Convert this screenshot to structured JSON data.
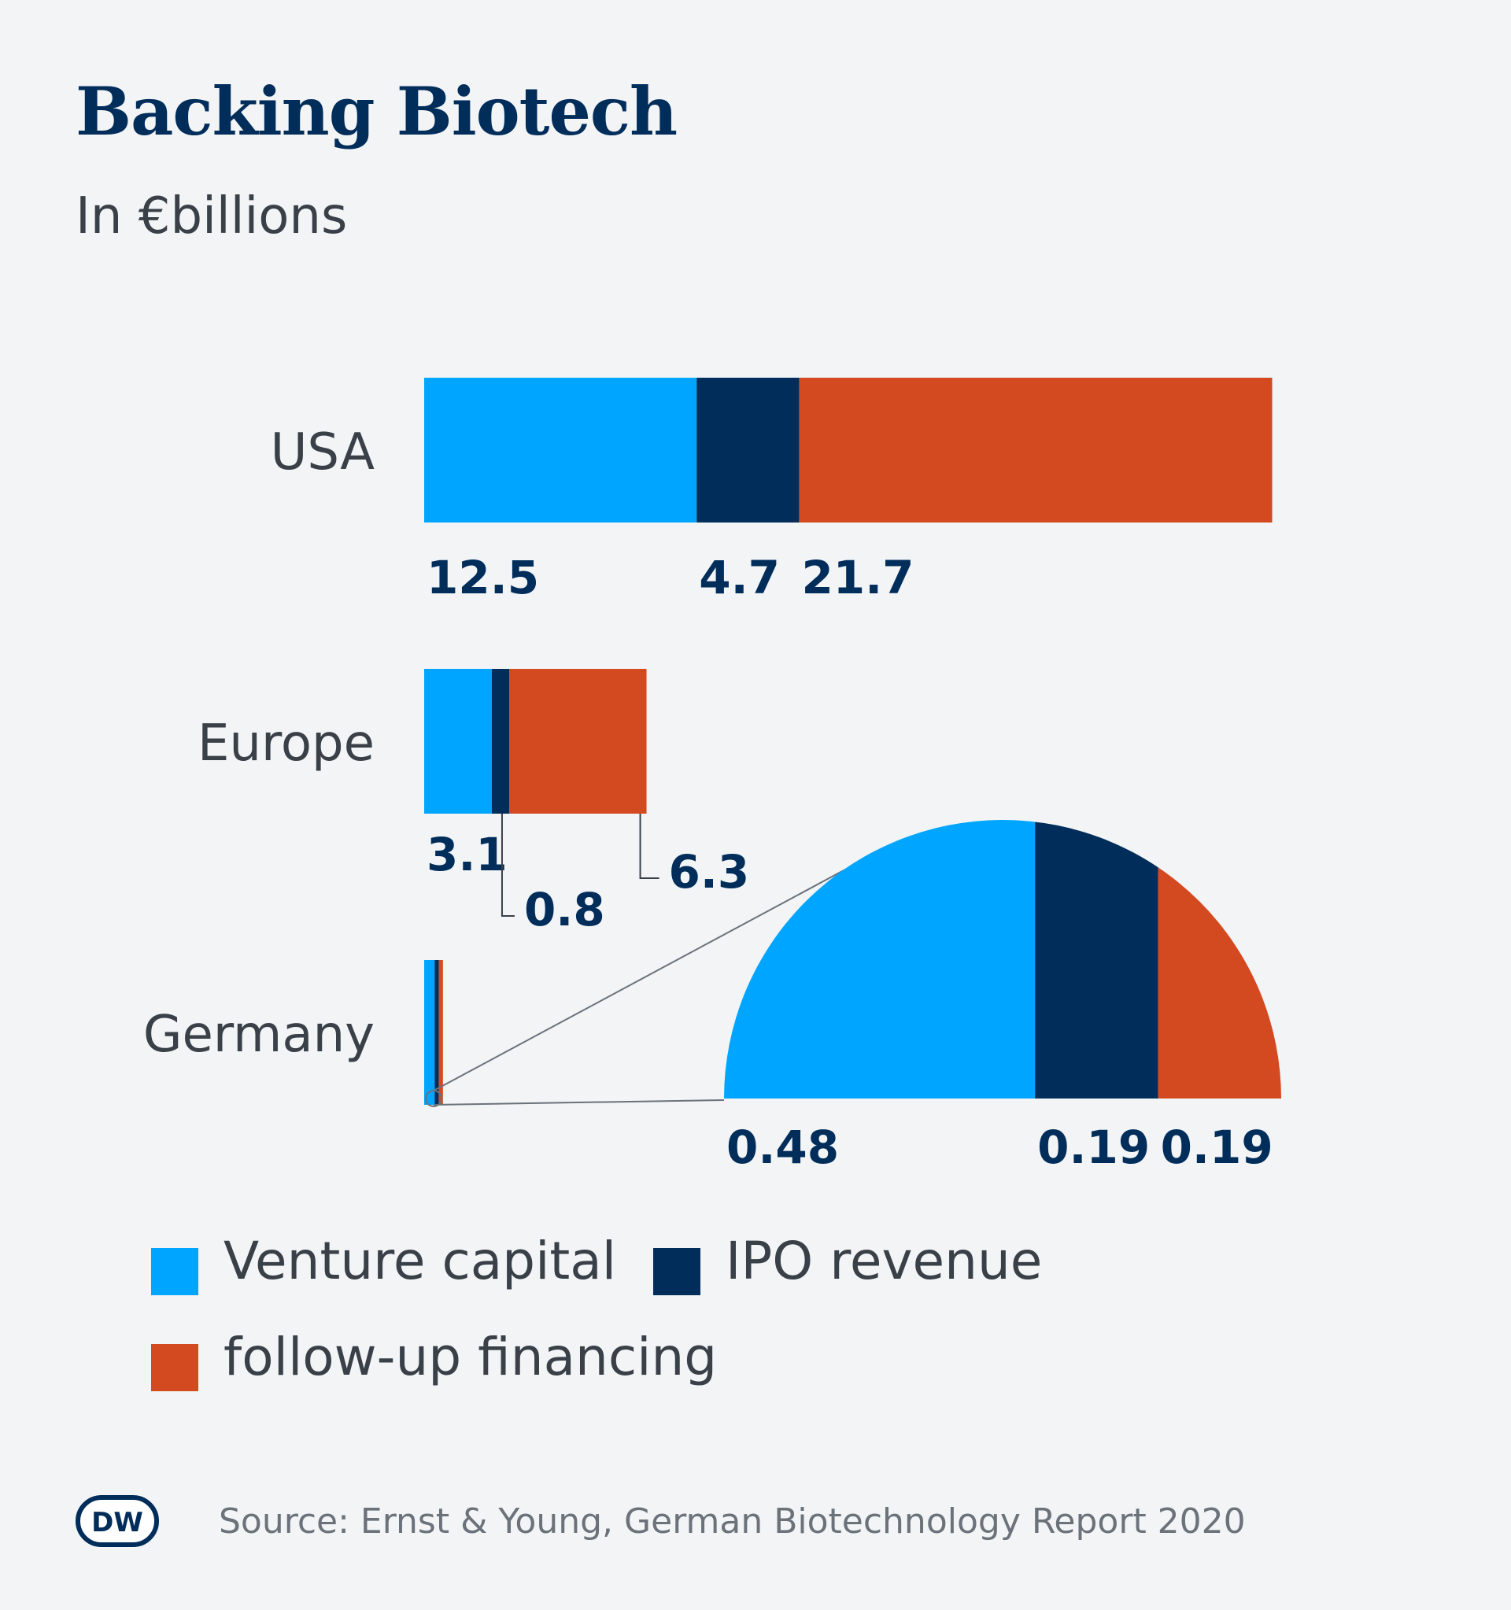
{
  "title": "Backing Biotech",
  "subtitle": "In €billions",
  "chart_data": {
    "type": "bar",
    "orientation": "horizontal",
    "stacked": true,
    "categories": [
      "USA",
      "Europe",
      "Germany"
    ],
    "series": [
      {
        "name": "Venture capital",
        "color": "#00a5ff",
        "values": [
          12.5,
          3.1,
          0.48
        ],
        "labels": [
          "12.5",
          "3.1",
          "0.48"
        ]
      },
      {
        "name": "IPO revenue",
        "color": "#002d5a",
        "values": [
          4.7,
          0.8,
          0.19
        ],
        "labels": [
          "4.7",
          "0.8",
          "0.19"
        ]
      },
      {
        "name": "follow-up financing",
        "color": "#d44a20",
        "values": [
          21.7,
          6.3,
          0.19
        ],
        "labels": [
          "21.7",
          "6.3",
          "0.19"
        ]
      }
    ],
    "inset": {
      "category": "Germany",
      "type": "half-pie",
      "values": [
        0.48,
        0.19,
        0.19
      ]
    },
    "legend": "bottom-left",
    "grid": false
  },
  "legend": {
    "items": [
      {
        "label": "Venture capital",
        "color": "#00a5ff"
      },
      {
        "label": "IPO revenue",
        "color": "#002d5a"
      },
      {
        "label": "follow-up financing",
        "color": "#d44a20"
      }
    ]
  },
  "footer": {
    "logo_text": "DW",
    "source": "Source: Ernst & Young, German Biotechnology Report 2020"
  }
}
